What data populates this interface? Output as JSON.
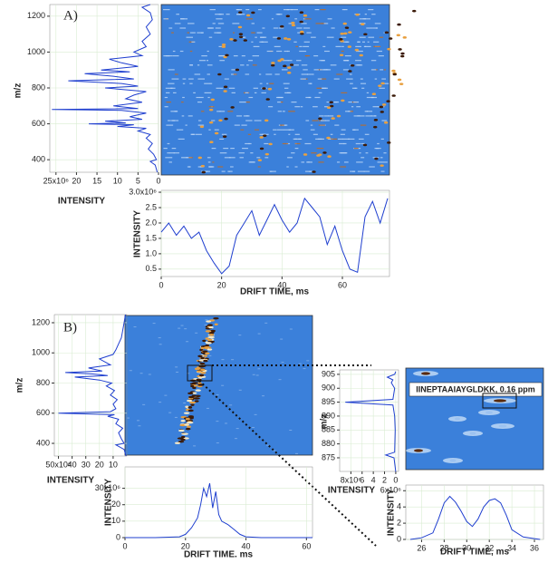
{
  "chart_data": [
    {
      "type": "line",
      "orientation": "horizontal",
      "title": "A)",
      "xlabel": "m/z",
      "ylabel": "INTENSITY",
      "xlim": [
        330,
        1265
      ],
      "xticks": [
        400,
        600,
        800,
        1000,
        1200
      ],
      "ylim": [
        26.5,
        0
      ],
      "yticks": [
        {
          "value": 25,
          "label": "25x10⁶"
        },
        20,
        15,
        10,
        5,
        0
      ],
      "grid": true,
      "color": "#1f3fcf",
      "x": [
        330,
        370,
        390,
        400,
        430,
        460,
        490,
        520,
        540,
        560,
        575,
        585,
        595,
        600,
        605,
        615,
        625,
        640,
        660,
        675,
        680,
        685,
        700,
        720,
        740,
        760,
        780,
        800,
        810,
        825,
        840,
        850,
        865,
        880,
        890,
        900,
        920,
        940,
        960,
        980,
        1000,
        1030,
        1060,
        1100,
        1140,
        1180,
        1220,
        1250,
        1265
      ],
      "values": [
        0.3,
        0.8,
        2,
        0.5,
        1.2,
        2.5,
        1.5,
        3,
        2,
        5,
        3,
        10,
        6,
        17,
        8,
        13,
        4,
        7,
        3,
        9,
        26,
        5,
        11,
        4,
        8,
        6,
        3,
        13,
        5,
        9,
        22,
        6,
        11,
        18,
        7,
        14,
        5,
        9,
        12,
        4,
        6,
        3,
        4,
        2,
        3,
        1.5,
        2,
        4,
        2
      ]
    },
    {
      "type": "line",
      "xlabel": "DRIFT TIME, ms",
      "ylabel": "INTENSITY",
      "xlim": [
        0,
        75.6
      ],
      "xticks": [
        0,
        20,
        40,
        60
      ],
      "ylim": [
        0.26,
        3.06
      ],
      "yticks": [
        0.5,
        {
          "value": 1,
          "label": "1.0"
        },
        1.5,
        {
          "value": 2,
          "label": "2.0"
        },
        2.5,
        {
          "value": 3,
          "label": "3.0x10⁶"
        }
      ],
      "grid": true,
      "color": "#1f3fcf",
      "x": [
        0,
        2.5,
        5,
        7.5,
        10,
        12.5,
        15,
        17.5,
        20,
        22.5,
        25,
        27.5,
        30,
        32.5,
        35,
        37.5,
        40,
        42.5,
        45,
        47.5,
        50,
        52.5,
        55,
        57.5,
        60,
        62.5,
        65,
        67.5,
        70,
        72.5,
        75
      ],
      "values": [
        1.7,
        2.0,
        1.6,
        1.9,
        1.5,
        1.7,
        1.1,
        0.7,
        0.35,
        0.6,
        1.6,
        2.0,
        2.4,
        1.6,
        2.1,
        2.6,
        2.1,
        1.7,
        2.0,
        2.8,
        2.5,
        2.2,
        1.3,
        1.9,
        1.1,
        0.5,
        0.4,
        2.2,
        2.7,
        2.0,
        2.8
      ]
    },
    {
      "type": "line",
      "orientation": "horizontal",
      "title": "B)",
      "xlabel": "m/z",
      "ylabel": "INTENSITY",
      "xlim": [
        316,
        1254
      ],
      "xticks": [
        400,
        600,
        800,
        1000,
        1200
      ],
      "ylim": [
        53,
        0
      ],
      "yticks": [
        {
          "value": 50,
          "label": "50x10⁶"
        },
        40,
        30,
        20,
        10
      ],
      "grid": true,
      "color": "#1f3fcf",
      "x": [
        316,
        360,
        390,
        400,
        430,
        470,
        500,
        530,
        560,
        580,
        590,
        600,
        610,
        630,
        660,
        690,
        720,
        750,
        780,
        800,
        820,
        840,
        850,
        860,
        870,
        880,
        900,
        920,
        940,
        960,
        990,
        1020,
        1060,
        1100,
        1150,
        1200,
        1254
      ],
      "values": [
        0.5,
        2,
        8,
        2,
        4,
        6,
        3,
        8,
        6,
        14,
        9,
        50,
        12,
        8,
        10,
        7,
        12,
        9,
        15,
        11,
        20,
        38,
        14,
        25,
        45,
        18,
        28,
        12,
        16,
        20,
        10,
        8,
        6,
        4,
        3,
        2,
        1
      ]
    },
    {
      "type": "line",
      "xlabel": "DRIFT TIME. ms",
      "ylabel": "INTENSITY",
      "xlim": [
        0,
        62
      ],
      "xticks": [
        0,
        20,
        40,
        60
      ],
      "ylim": [
        0,
        43
      ],
      "yticks": [
        0,
        10,
        20,
        {
          "value": 30,
          "label": "30x10⁶"
        }
      ],
      "grid": true,
      "color": "#1f3fcf",
      "x": [
        0,
        10,
        18,
        20,
        22,
        24,
        25,
        26,
        27,
        28,
        29,
        30,
        31,
        32,
        34,
        36,
        38,
        40,
        45,
        50,
        60,
        62
      ],
      "values": [
        0,
        0,
        0.5,
        2,
        6,
        12,
        20,
        30,
        25,
        33,
        18,
        28,
        14,
        10,
        8,
        5,
        2,
        0.5,
        0,
        0,
        0,
        0
      ]
    },
    {
      "type": "line",
      "orientation": "horizontal",
      "xlabel": "m/z",
      "ylabel": "INTENSITY",
      "xlim": [
        870.1,
        906.6
      ],
      "xticks": [
        875,
        880,
        885,
        890,
        895,
        900,
        905
      ],
      "ylim": [
        10,
        -0.5
      ],
      "yticks": [
        {
          "value": 8,
          "label": "8x10⁶"
        },
        6,
        4,
        2,
        0
      ],
      "grid": true,
      "color": "#1f3fcf",
      "x": [
        870,
        875,
        876,
        877,
        885,
        890,
        894,
        895,
        896,
        900,
        902,
        903,
        904,
        905,
        906
      ],
      "values": [
        0,
        0.3,
        1.8,
        0.2,
        0.1,
        0.2,
        0.5,
        9,
        0.5,
        0.2,
        0.8,
        0.5,
        1.5,
        0.2,
        0
      ]
    },
    {
      "type": "line",
      "xlabel": "DRIFT TIME, ms",
      "ylabel": "INTENSITY",
      "xlim": [
        24.6,
        36.8
      ],
      "xticks": [
        26,
        28,
        30,
        32,
        34,
        36
      ],
      "ylim": [
        0,
        6.7
      ],
      "yticks": [
        0,
        2,
        4,
        {
          "value": 6,
          "label": "6x10⁶"
        }
      ],
      "grid": true,
      "color": "#1f3fcf",
      "x": [
        25,
        26,
        27,
        27.5,
        28,
        28.5,
        29,
        29.5,
        30,
        30.5,
        31,
        31.5,
        32,
        32.5,
        33,
        33.5,
        34,
        35,
        36,
        36.5
      ],
      "values": [
        0,
        0.2,
        0.8,
        2.5,
        4.5,
        5.3,
        4.6,
        3.5,
        2.2,
        1.6,
        2.5,
        4,
        4.8,
        5.0,
        4.5,
        3,
        1.2,
        0.3,
        0.1,
        0
      ]
    }
  ],
  "annotation": "IINEPTAAIAYGLDKK, 0.16 ppm"
}
